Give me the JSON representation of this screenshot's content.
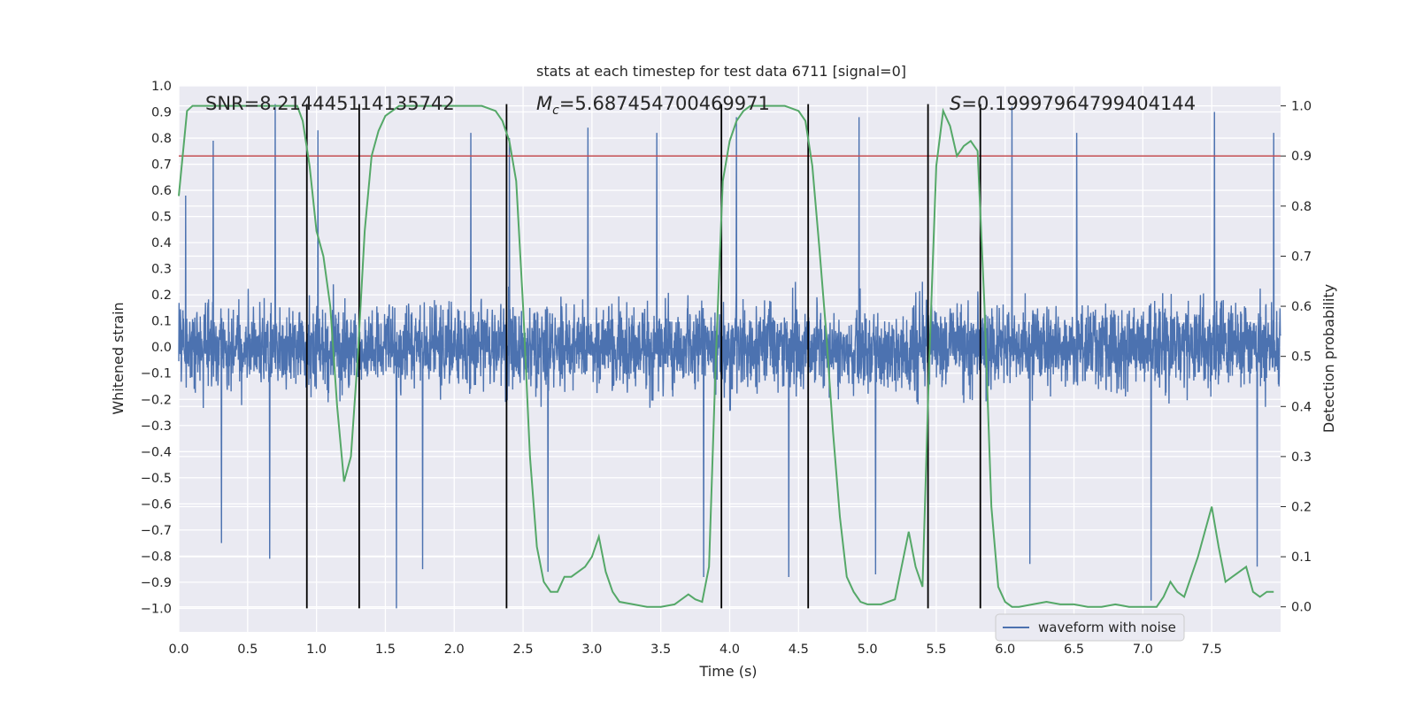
{
  "chart_data": {
    "type": "line",
    "title": "stats at each timestep for test data 6711 [signal=0]",
    "xlabel": "Time (s)",
    "ylabel_left": "Whitened strain",
    "ylabel_right": "Detection probability",
    "xlim": [
      0,
      8
    ],
    "ylim_left": [
      -1.09,
      1.0
    ],
    "ylim_right": [
      -0.05,
      1.04
    ],
    "x_ticks": [
      "0.0",
      "0.5",
      "1.0",
      "1.5",
      "2.0",
      "2.5",
      "3.0",
      "3.5",
      "4.0",
      "4.5",
      "5.0",
      "5.5",
      "6.0",
      "6.5",
      "7.0",
      "7.5"
    ],
    "y_left_ticks": [
      "1.0",
      "0.9",
      "0.8",
      "0.7",
      "0.6",
      "0.5",
      "0.4",
      "0.3",
      "0.2",
      "0.1",
      "0.0",
      "-0.1",
      "-0.2",
      "-0.3",
      "-0.4",
      "-0.5",
      "-0.6",
      "-0.7",
      "-0.8",
      "-0.9",
      "-1.0"
    ],
    "y_right_ticks": [
      "1.0",
      "0.9",
      "0.8",
      "0.7",
      "0.6",
      "0.5",
      "0.4",
      "0.3",
      "0.2",
      "0.1",
      "0.0"
    ],
    "annotations": {
      "snr": "SNR=8.214445114135742",
      "mc_symbol": "M",
      "mc_sub": "c",
      "mc_value": "=5.687454700469971",
      "s_symbol": "S",
      "s_value": "=0.19997964799404144"
    },
    "threshold": 0.9,
    "vertical_lines": [
      0.93,
      1.31,
      2.38,
      3.94,
      4.57,
      5.44,
      5.82
    ],
    "vertical_line_range": [
      -1.0,
      0.93
    ],
    "legend": {
      "label": "waveform with noise",
      "position": "lower right"
    },
    "waveform": {
      "name": "waveform with noise",
      "samples": 4000,
      "typical_envelope": 0.45,
      "peaks": [
        {
          "x": 0.05,
          "y": 0.58
        },
        {
          "x": 0.25,
          "y": 0.79
        },
        {
          "x": 0.31,
          "y": -0.75
        },
        {
          "x": 0.7,
          "y": 0.93
        },
        {
          "x": 0.66,
          "y": -0.81
        },
        {
          "x": 1.01,
          "y": 0.83
        },
        {
          "x": 1.58,
          "y": -1.0
        },
        {
          "x": 1.77,
          "y": -0.85
        },
        {
          "x": 2.12,
          "y": 0.82
        },
        {
          "x": 2.4,
          "y": 0.8
        },
        {
          "x": 2.68,
          "y": -0.86
        },
        {
          "x": 2.97,
          "y": 0.84
        },
        {
          "x": 3.47,
          "y": 0.82
        },
        {
          "x": 3.81,
          "y": -0.88
        },
        {
          "x": 4.05,
          "y": 0.88
        },
        {
          "x": 4.43,
          "y": -0.88
        },
        {
          "x": 4.94,
          "y": 0.88
        },
        {
          "x": 5.06,
          "y": -0.87
        },
        {
          "x": 6.05,
          "y": 0.92
        },
        {
          "x": 6.18,
          "y": -0.83
        },
        {
          "x": 6.52,
          "y": 0.82
        },
        {
          "x": 7.06,
          "y": -0.97
        },
        {
          "x": 7.52,
          "y": 0.9
        },
        {
          "x": 7.83,
          "y": -0.84
        },
        {
          "x": 7.95,
          "y": 0.82
        }
      ]
    },
    "series": [
      {
        "name": "detection probability",
        "color": "#55a868",
        "x": [
          0.0,
          0.06,
          0.1,
          0.2,
          0.3,
          0.4,
          0.5,
          0.6,
          0.7,
          0.8,
          0.86,
          0.9,
          0.95,
          1.0,
          1.05,
          1.1,
          1.15,
          1.2,
          1.25,
          1.3,
          1.35,
          1.4,
          1.45,
          1.5,
          1.6,
          1.7,
          1.8,
          1.9,
          2.0,
          2.1,
          2.2,
          2.3,
          2.35,
          2.4,
          2.45,
          2.5,
          2.55,
          2.6,
          2.65,
          2.7,
          2.75,
          2.8,
          2.85,
          2.9,
          2.95,
          3.0,
          3.05,
          3.1,
          3.15,
          3.2,
          3.3,
          3.4,
          3.5,
          3.6,
          3.7,
          3.75,
          3.8,
          3.85,
          3.9,
          3.95,
          4.0,
          4.05,
          4.1,
          4.15,
          4.2,
          4.3,
          4.4,
          4.5,
          4.55,
          4.6,
          4.65,
          4.7,
          4.75,
          4.8,
          4.85,
          4.9,
          4.95,
          5.0,
          5.1,
          5.2,
          5.3,
          5.35,
          5.4,
          5.45,
          5.5,
          5.55,
          5.6,
          5.65,
          5.7,
          5.75,
          5.8,
          5.85,
          5.9,
          5.95,
          6.0,
          6.05,
          6.1,
          6.2,
          6.3,
          6.4,
          6.5,
          6.6,
          6.7,
          6.8,
          6.9,
          7.0,
          7.05,
          7.1,
          7.15,
          7.2,
          7.25,
          7.3,
          7.35,
          7.4,
          7.45,
          7.5,
          7.55,
          7.6,
          7.65,
          7.7,
          7.75,
          7.8,
          7.85,
          7.9,
          7.95
        ],
        "y": [
          0.82,
          0.99,
          1.0,
          1.0,
          1.0,
          1.0,
          1.0,
          1.0,
          1.0,
          1.0,
          1.0,
          0.97,
          0.88,
          0.75,
          0.7,
          0.6,
          0.4,
          0.25,
          0.3,
          0.5,
          0.75,
          0.9,
          0.95,
          0.98,
          1.0,
          1.0,
          1.0,
          1.0,
          1.0,
          1.0,
          1.0,
          0.99,
          0.97,
          0.93,
          0.85,
          0.6,
          0.3,
          0.12,
          0.05,
          0.03,
          0.03,
          0.06,
          0.06,
          0.07,
          0.08,
          0.1,
          0.14,
          0.07,
          0.03,
          0.01,
          0.005,
          0.0,
          0.0,
          0.005,
          0.025,
          0.015,
          0.01,
          0.08,
          0.5,
          0.85,
          0.93,
          0.97,
          0.99,
          1.0,
          1.0,
          1.0,
          1.0,
          0.99,
          0.97,
          0.88,
          0.72,
          0.55,
          0.35,
          0.18,
          0.06,
          0.03,
          0.01,
          0.005,
          0.005,
          0.015,
          0.15,
          0.08,
          0.04,
          0.5,
          0.88,
          0.99,
          0.96,
          0.9,
          0.92,
          0.93,
          0.91,
          0.6,
          0.2,
          0.04,
          0.01,
          0.0,
          0.0,
          0.005,
          0.01,
          0.005,
          0.005,
          0.0,
          0.0,
          0.005,
          0.0,
          0.0,
          0.0,
          0.0,
          0.02,
          0.05,
          0.03,
          0.02,
          0.06,
          0.1,
          0.15,
          0.2,
          0.12,
          0.05,
          0.06,
          0.07,
          0.08,
          0.03,
          0.02,
          0.03,
          0.03
        ]
      }
    ],
    "colors": {
      "waveform": "#4c72b0",
      "threshold": "#c44e52",
      "vlines": "#000000",
      "background": "#eaeaf2",
      "grid": "#ffffff",
      "text": "#262626"
    }
  }
}
